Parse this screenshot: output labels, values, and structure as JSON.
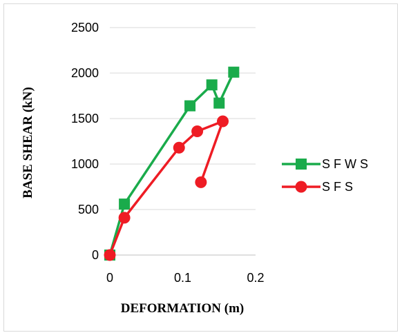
{
  "chart_data": {
    "type": "line",
    "title": "",
    "xlabel": "DEFORMATION (m)",
    "ylabel": "BASE SHEAR (kN)",
    "xlim": [
      0,
      0.2
    ],
    "ylim": [
      0,
      2500
    ],
    "x_ticks": [
      "0",
      "0.1",
      "0.2"
    ],
    "y_ticks": [
      "0",
      "500",
      "1000",
      "1500",
      "2000",
      "2500"
    ],
    "grid": "horizontal",
    "legend_position": "right",
    "series": [
      {
        "name": "S F W S",
        "color": "#1aab4b",
        "marker": "square",
        "x": [
          0,
          0.02,
          0.11,
          0.14,
          0.15,
          0.17
        ],
        "y": [
          0,
          560,
          1640,
          1870,
          1670,
          2010
        ]
      },
      {
        "name": "S F S",
        "color": "#ee1c24",
        "marker": "circle",
        "x": [
          0,
          0.02,
          0.095,
          0.12,
          0.155,
          0.125
        ],
        "y": [
          0,
          410,
          1180,
          1360,
          1470,
          800
        ]
      }
    ]
  }
}
